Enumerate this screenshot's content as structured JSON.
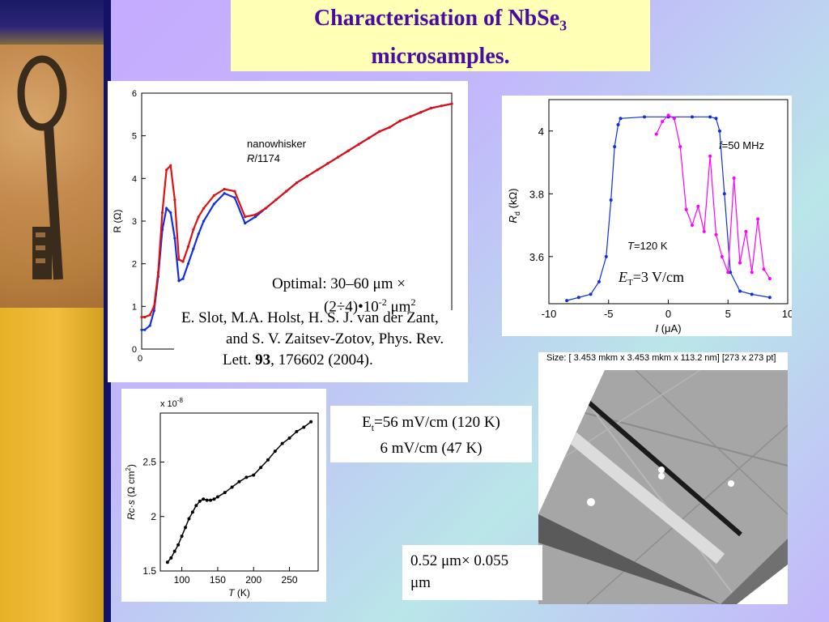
{
  "slide": {
    "title_line1": "Characterisation of NbSe",
    "title_sub": "3",
    "title_line2": "microsamples."
  },
  "texts": {
    "optimal_line1": "Optimal: 30–60 μm ×",
    "optimal_line2": "(2÷4)•10",
    "optimal_line2_exp": "-2",
    "optimal_line2_unit": " μm",
    "optimal_line2_unit_exp": "2",
    "ref_line1": "E. Slot, M.A. Holst, H. S. J. van der Zant,",
    "ref_line2": "and S. V. Zaitsev-Zotov, Phys. Rev.",
    "ref_line3_pre": "Lett. ",
    "ref_line3_bold": "93",
    "ref_line3_post": ", 176602 (2004).",
    "et_box_line1_pre": "E",
    "et_box_line1_sub": "t",
    "et_box_line1_post": "=56 mV/cm (120 K)",
    "et_box_line2": "6 mV/cm (47 K)",
    "size_box_line1": "0.52 μm× 0.055",
    "size_box_line2": "μm",
    "afm_header": "Size: [ 3.453 mkm x  3.453 mkm x  113.2 nm] [273 x 273 pt]"
  },
  "icons": {
    "key": "key-photo-icon"
  },
  "colors": {
    "title_text": "#4b0b9f",
    "title_bg": "#ffffb6",
    "series_red": "#e01010",
    "series_blue": "#1030e0",
    "series_magenta": "#ff00ff"
  },
  "chart_data": [
    {
      "type": "line",
      "ylabel": "R (Ω)",
      "annotation_line1": "nanowhisker",
      "annotation_line2": "R/1174",
      "ylim": [
        0,
        6
      ],
      "yticks": [
        "0",
        "1",
        "2",
        "3",
        "4",
        "5",
        "6"
      ],
      "xticks": [
        "0"
      ],
      "series": [
        {
          "color": "#e01010",
          "x": [
            0,
            3,
            8,
            12,
            16,
            20,
            24,
            28,
            32,
            36,
            40,
            45,
            50,
            55,
            60,
            70,
            80,
            90,
            100,
            110,
            120,
            130,
            140,
            150,
            160,
            170,
            180,
            190,
            200,
            210,
            220,
            230,
            240,
            250,
            260,
            270,
            280,
            290,
            300
          ],
          "y": [
            0.75,
            0.75,
            0.8,
            1.0,
            1.8,
            3.2,
            4.2,
            4.3,
            3.5,
            2.1,
            2.05,
            2.4,
            2.8,
            3.1,
            3.3,
            3.6,
            3.75,
            3.7,
            3.1,
            3.15,
            3.3,
            3.5,
            3.7,
            3.9,
            4.05,
            4.2,
            4.35,
            4.5,
            4.65,
            4.8,
            4.95,
            5.1,
            5.2,
            5.35,
            5.45,
            5.55,
            5.65,
            5.7,
            5.75
          ]
        },
        {
          "color": "#1030e0",
          "x": [
            0,
            3,
            8,
            12,
            16,
            20,
            24,
            28,
            32,
            36,
            40,
            45,
            50,
            55,
            60,
            70,
            80,
            90,
            100,
            110,
            120,
            130,
            140,
            150,
            160,
            170,
            180,
            190,
            200,
            210,
            220,
            230,
            240,
            250,
            260,
            270,
            280,
            290,
            300
          ],
          "y": [
            0.45,
            0.45,
            0.55,
            0.9,
            1.7,
            2.8,
            3.3,
            3.2,
            2.6,
            1.6,
            1.65,
            2.0,
            2.35,
            2.7,
            3.0,
            3.4,
            3.65,
            3.55,
            2.95,
            3.1,
            3.3,
            3.5,
            3.7,
            3.9,
            4.05,
            4.2,
            4.35,
            4.5,
            4.65,
            4.8,
            4.95,
            5.1,
            5.2,
            5.35,
            5.45,
            5.55,
            5.65,
            5.7,
            5.75
          ]
        }
      ]
    },
    {
      "type": "line",
      "xlabel": "I (μA)",
      "ylabel": "R",
      "ylabel_sub": "d",
      "ylabel_unit": " (kΩ)",
      "xlim": [
        -10,
        10
      ],
      "ylim": [
        3.45,
        4.1
      ],
      "xticks": [
        "-10",
        "-5",
        "0",
        "5",
        "10"
      ],
      "yticks": [
        "3.6",
        "3.8",
        "4"
      ],
      "annotation_f": "f=50 MHz",
      "annotation_T": "T=120 K",
      "annotation_E_pre": "E",
      "annotation_E_sub": "T",
      "annotation_E_post": "=3 V/cm",
      "series": [
        {
          "color": "#1030e0",
          "x": [
            -8.5,
            -7.5,
            -6.5,
            -5.8,
            -5.2,
            -4.8,
            -4.5,
            -4.2,
            -4,
            -2,
            0,
            2,
            3.5,
            4,
            4.3,
            4.7,
            5.2,
            6,
            7,
            8.5
          ],
          "y": [
            3.46,
            3.47,
            3.48,
            3.52,
            3.6,
            3.78,
            3.95,
            4.02,
            4.04,
            4.045,
            4.045,
            4.045,
            4.045,
            4.04,
            4.0,
            3.8,
            3.55,
            3.49,
            3.48,
            3.47
          ]
        },
        {
          "color": "#ff00ff",
          "x": [
            -1,
            -0.5,
            0,
            0.5,
            1,
            1.5,
            2,
            2.5,
            3,
            3.5,
            4,
            4.5,
            5,
            5.5,
            6,
            6.5,
            7,
            7.5,
            8,
            8.5
          ],
          "y": [
            3.99,
            4.03,
            4.05,
            4.04,
            3.95,
            3.75,
            3.7,
            3.76,
            3.68,
            3.92,
            3.67,
            3.6,
            3.55,
            3.85,
            3.58,
            3.68,
            3.55,
            3.72,
            3.56,
            3.53
          ]
        }
      ]
    },
    {
      "type": "scatter",
      "xlabel": "T (K)",
      "ylabel": "R",
      "ylabel_rest": "c·s",
      "ylabel_unit": " (Ω cm",
      "ylabel_unit_exp": "2",
      "ylabel_close": ")",
      "multiplier": "x 10",
      "multiplier_exp": "-8",
      "xlim": [
        70,
        290
      ],
      "ylim": [
        1.5,
        2.95
      ],
      "xticks": [
        "100",
        "150",
        "200",
        "250"
      ],
      "yticks": [
        "1.5",
        "2",
        "2.5"
      ],
      "series": [
        {
          "color": "#000000",
          "x": [
            80,
            85,
            90,
            95,
            100,
            105,
            110,
            115,
            120,
            125,
            130,
            135,
            140,
            145,
            150,
            160,
            170,
            180,
            190,
            200,
            210,
            220,
            230,
            240,
            250,
            260,
            270,
            280
          ],
          "y": [
            1.58,
            1.62,
            1.68,
            1.74,
            1.82,
            1.9,
            1.98,
            2.04,
            2.1,
            2.14,
            2.16,
            2.15,
            2.15,
            2.16,
            2.18,
            2.22,
            2.27,
            2.32,
            2.36,
            2.38,
            2.45,
            2.52,
            2.6,
            2.67,
            2.72,
            2.78,
            2.82,
            2.87
          ]
        }
      ]
    }
  ]
}
